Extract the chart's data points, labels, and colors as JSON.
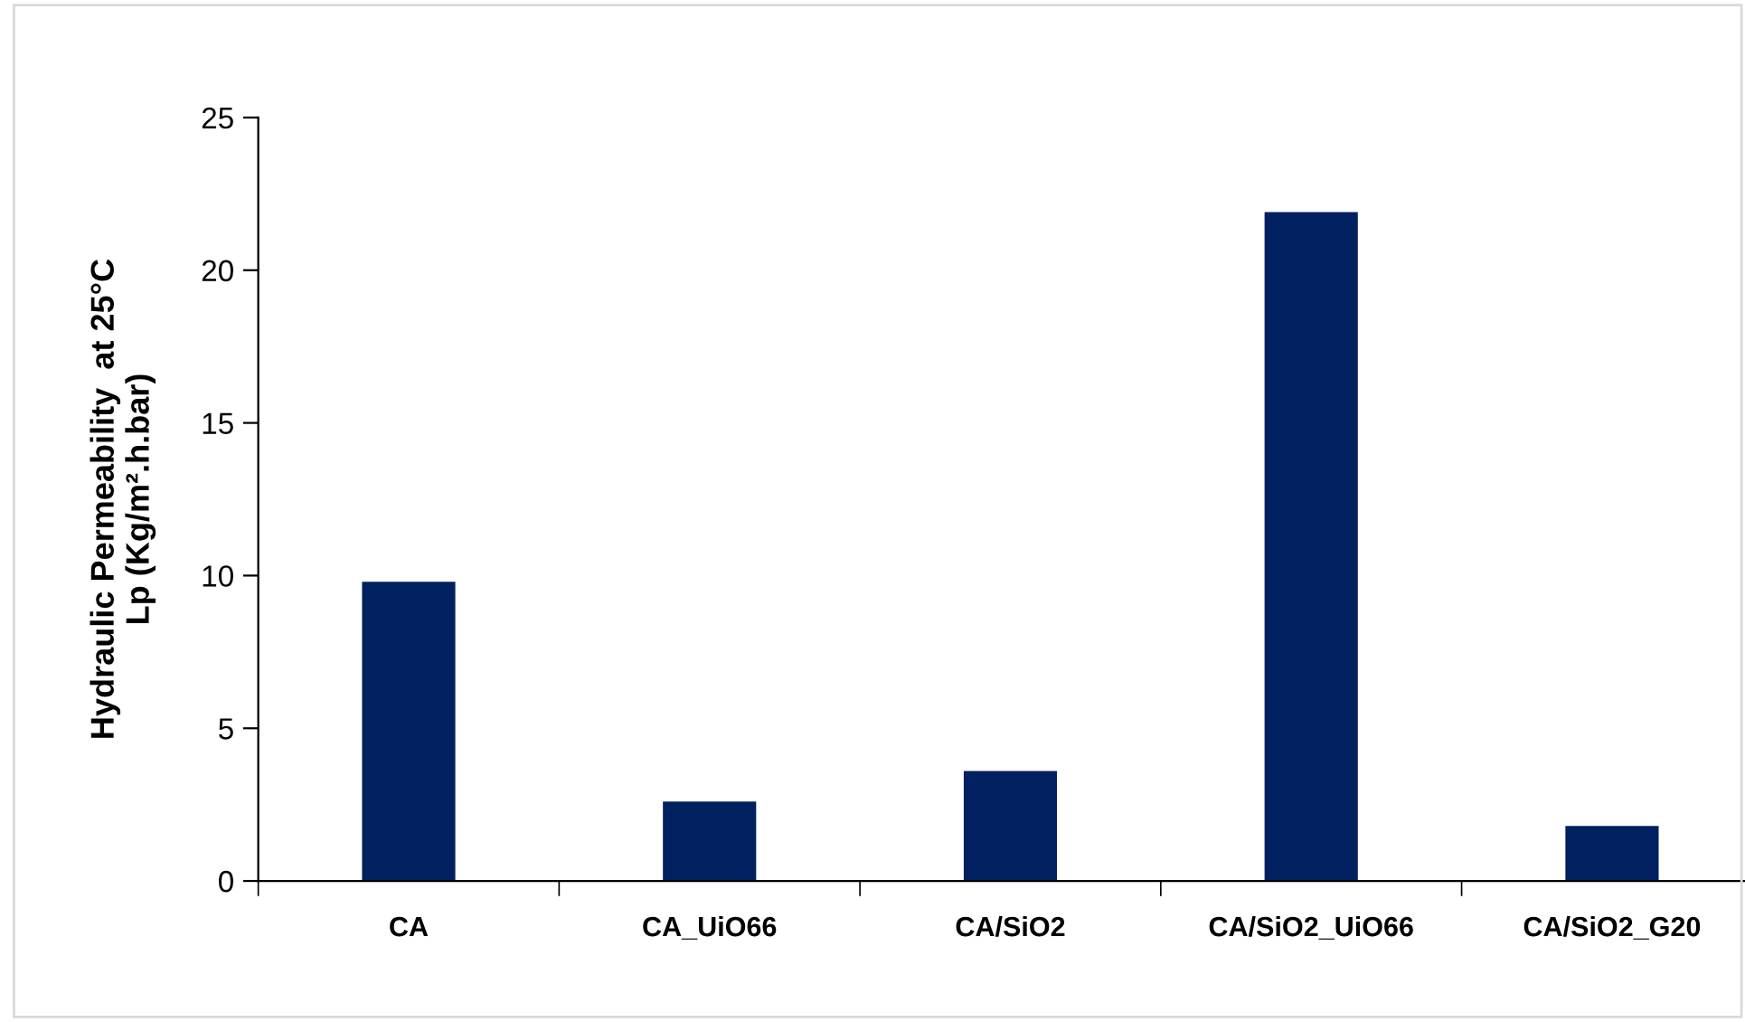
{
  "chart_data": {
    "type": "bar",
    "ylabel": "Hydraulic Permeability  at 25°C\nLp (Kg/m².h.bar)",
    "categories": [
      "CA",
      "CA_UiO66",
      "CA/SiO2",
      "CA/SiO2_UiO66",
      "CA/SiO2_G20"
    ],
    "values": [
      9.8,
      2.6,
      3.6,
      21.9,
      1.8
    ],
    "color": "#002060",
    "ylim": [
      0,
      25
    ],
    "yticks": [
      0,
      5,
      10,
      15,
      20,
      25
    ],
    "grid": false,
    "legend": false
  }
}
